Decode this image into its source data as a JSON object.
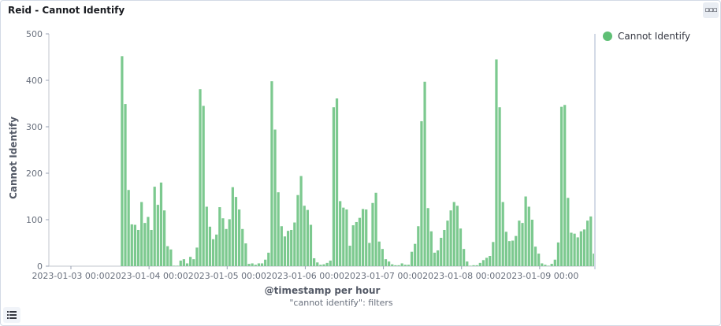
{
  "panel": {
    "title": "Reid - Cannot Identify",
    "options_icon": "ellipsis-icon",
    "legend_toggle_icon": "list-icon"
  },
  "colors": {
    "bar": "#7cc98f",
    "axis": "#69707d",
    "grid": "#eef0f3"
  },
  "chart_data": {
    "type": "bar",
    "title": "",
    "ylabel": "Cannot Identify",
    "xlabel": "@timestamp per hour",
    "subtitle": "\"cannot identify\": filters",
    "ylim": [
      0,
      500
    ],
    "yticks": [
      0,
      100,
      200,
      300,
      400,
      500
    ],
    "xticks": [
      "2023-01-03 00:00",
      "2023-01-04 00:00",
      "2023-01-05 00:00",
      "2023-01-06 00:00",
      "2023-01-07 00:00",
      "2023-01-08 00:00",
      "2023-01-09 00:00"
    ],
    "legend": "top-right",
    "x_start": "2023-01-03 00:00",
    "interval": "1h",
    "series": [
      {
        "name": "Cannot Identify",
        "values": [
          0,
          0,
          0,
          0,
          0,
          0,
          0,
          0,
          0,
          0,
          0,
          0,
          0,
          0,
          0,
          0,
          0,
          0,
          0,
          0,
          0,
          0,
          0,
          0,
          0,
          0,
          0,
          0,
          0,
          0,
          0,
          0,
          0,
          0,
          0,
          0,
          0,
          0,
          0,
          0,
          0,
          0,
          0,
          0,
          0,
          0,
          0,
          0,
          0,
          0,
          0,
          0,
          0,
          0,
          0,
          0,
          0,
          0,
          0,
          0,
          0,
          0,
          0,
          0,
          0,
          0,
          0,
          0,
          0,
          0,
          0,
          0,
          0,
          0,
          0,
          0,
          0,
          0,
          0,
          0,
          0,
          0,
          0,
          0,
          0,
          0,
          0,
          0,
          0,
          0,
          0,
          0,
          0,
          0,
          0,
          0,
          0,
          0,
          0,
          0,
          0,
          0,
          0,
          0,
          0,
          0,
          0,
          0,
          0,
          0,
          0,
          0,
          0,
          0,
          0,
          0,
          0,
          0,
          0,
          0,
          0,
          0,
          0,
          0,
          0,
          0,
          0,
          0,
          0,
          0,
          0,
          0,
          0,
          0,
          0,
          0,
          0,
          0,
          0,
          0,
          0,
          0,
          0,
          0,
          0,
          0,
          0,
          0,
          0,
          0,
          0,
          0,
          0,
          0,
          0,
          0,
          0,
          0,
          0,
          0,
          0,
          0,
          0,
          0,
          0,
          0,
          0,
          0
        ]
      }
    ],
    "bars": [
      452,
      349,
      164,
      90,
      89,
      78,
      138,
      93,
      106,
      78,
      171,
      132,
      180,
      120,
      43,
      36,
      1,
      1,
      12,
      15,
      6,
      20,
      15,
      40,
      381,
      345,
      128,
      85,
      58,
      68,
      127,
      103,
      80,
      101,
      170,
      149,
      122,
      80,
      49,
      5,
      6,
      3,
      6,
      6,
      14,
      29,
      398,
      294,
      159,
      86,
      64,
      76,
      78,
      94,
      153,
      194,
      130,
      121,
      89,
      17,
      8,
      3,
      4,
      7,
      12,
      342,
      361,
      140,
      126,
      122,
      44,
      88,
      95,
      104,
      123,
      122,
      50,
      136,
      158,
      53,
      37,
      15,
      10,
      4,
      2,
      2,
      6,
      3,
      3,
      31,
      48,
      86,
      312,
      397,
      125,
      75,
      29,
      34,
      61,
      78,
      98,
      120,
      138,
      130,
      81,
      37,
      10,
      1,
      2,
      2,
      7,
      13,
      18,
      22,
      52,
      445,
      342,
      138,
      74,
      54,
      55,
      65,
      98,
      93,
      150,
      128,
      100,
      42,
      27,
      6,
      3,
      1,
      5,
      14,
      51,
      343,
      347,
      147,
      72,
      70,
      62,
      75,
      79,
      98,
      107,
      27
    ]
  }
}
